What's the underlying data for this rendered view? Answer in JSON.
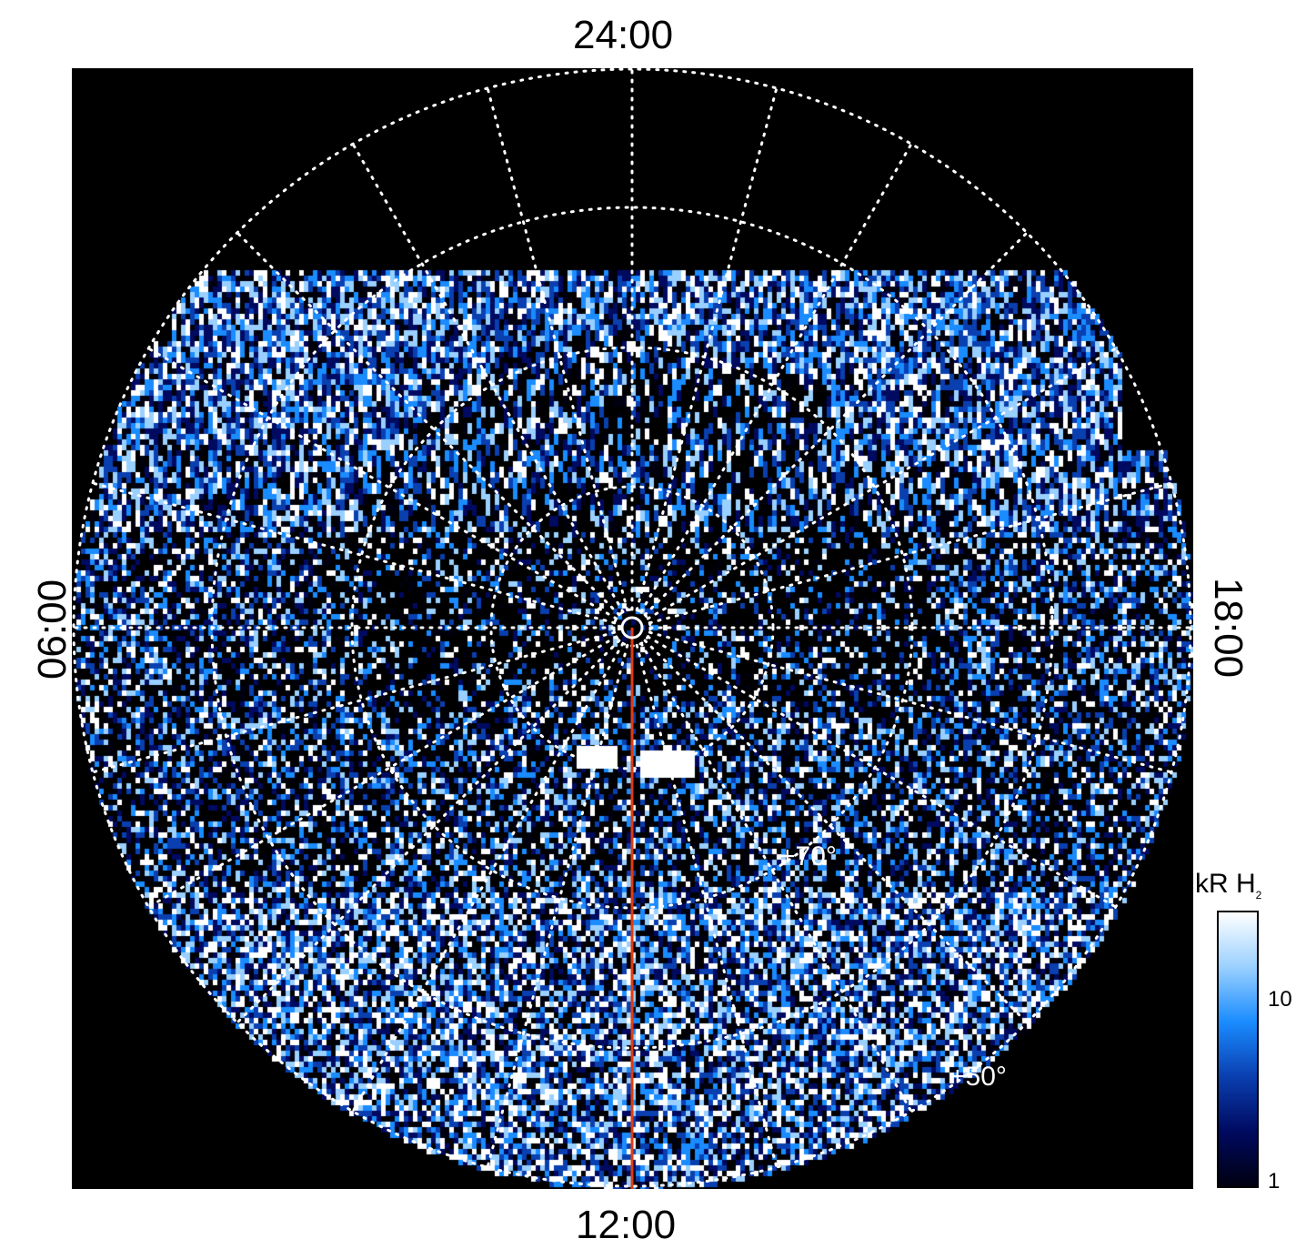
{
  "chart_data": {
    "type": "heatmap",
    "projection": "polar",
    "local_time_labels": {
      "top": "24:00",
      "bottom": "12:00",
      "left": "06:00",
      "right": "18:00"
    },
    "latitude_labels": [
      "+70°",
      "+50°"
    ],
    "meridian_step_hours": 1,
    "colorbar": {
      "title": "kR H",
      "title_subscript": "2",
      "scale": "log",
      "ticks": [
        "1",
        "10"
      ],
      "colors": [
        "#000010",
        "#000a60",
        "#0a3fb0",
        "#1a8cff",
        "#9ad0ff",
        "#ffffff"
      ]
    },
    "overlay_line_color": "#e03c10",
    "grid": true
  }
}
